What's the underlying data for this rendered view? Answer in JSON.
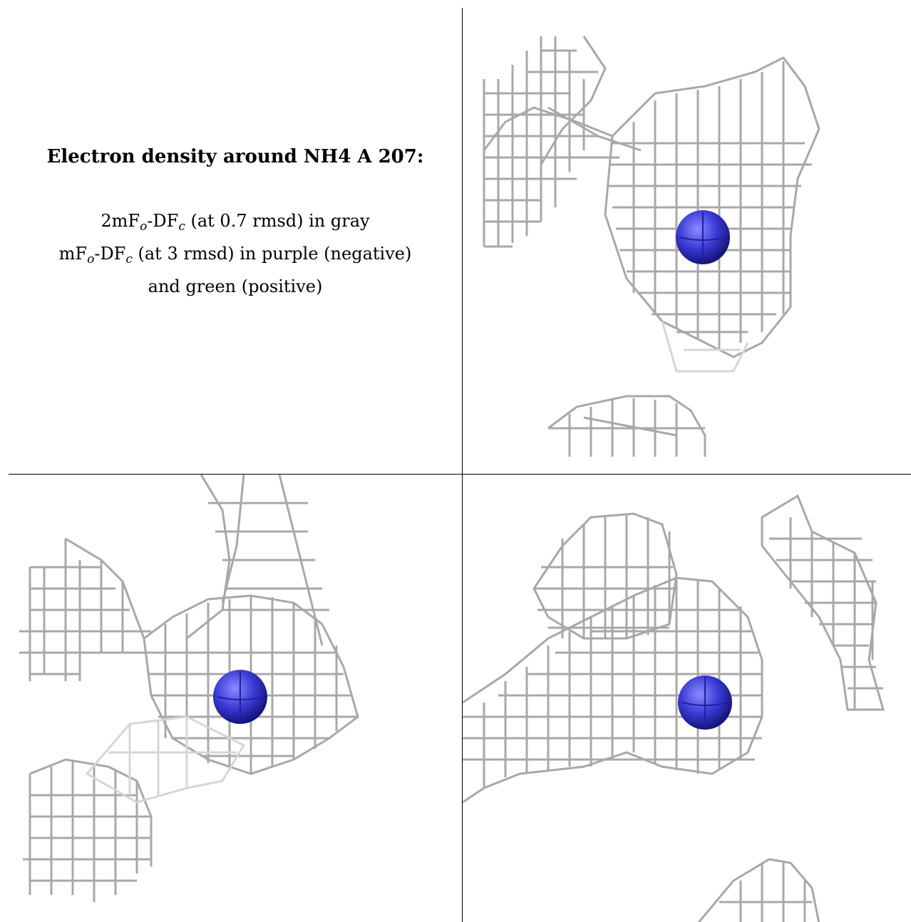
{
  "caption": {
    "title": "Electron density around NH4 A 207:",
    "line1_pre": "2mF",
    "line1_sub1": "o",
    "line1_mid": "-DF",
    "line1_sub2": "c",
    "line1_post": " (at 0.7 rmsd) in gray",
    "line2_pre": "mF",
    "line2_sub1": "o",
    "line2_mid": "-DF",
    "line2_sub2": "c",
    "line2_post": " (at 3 rmsd) in purple (negative)",
    "line3": "and green (positive)"
  },
  "colors": {
    "mesh_gray": "#a8a8a8",
    "mesh_light": "#d6d6d6",
    "atom_blue": "#3a3ad6",
    "border": "#000000"
  },
  "panels": [
    {
      "name": "view-top-right",
      "atom": "NH4"
    },
    {
      "name": "view-bottom-left",
      "atom": "NH4"
    },
    {
      "name": "view-bottom-right",
      "atom": "NH4"
    }
  ]
}
